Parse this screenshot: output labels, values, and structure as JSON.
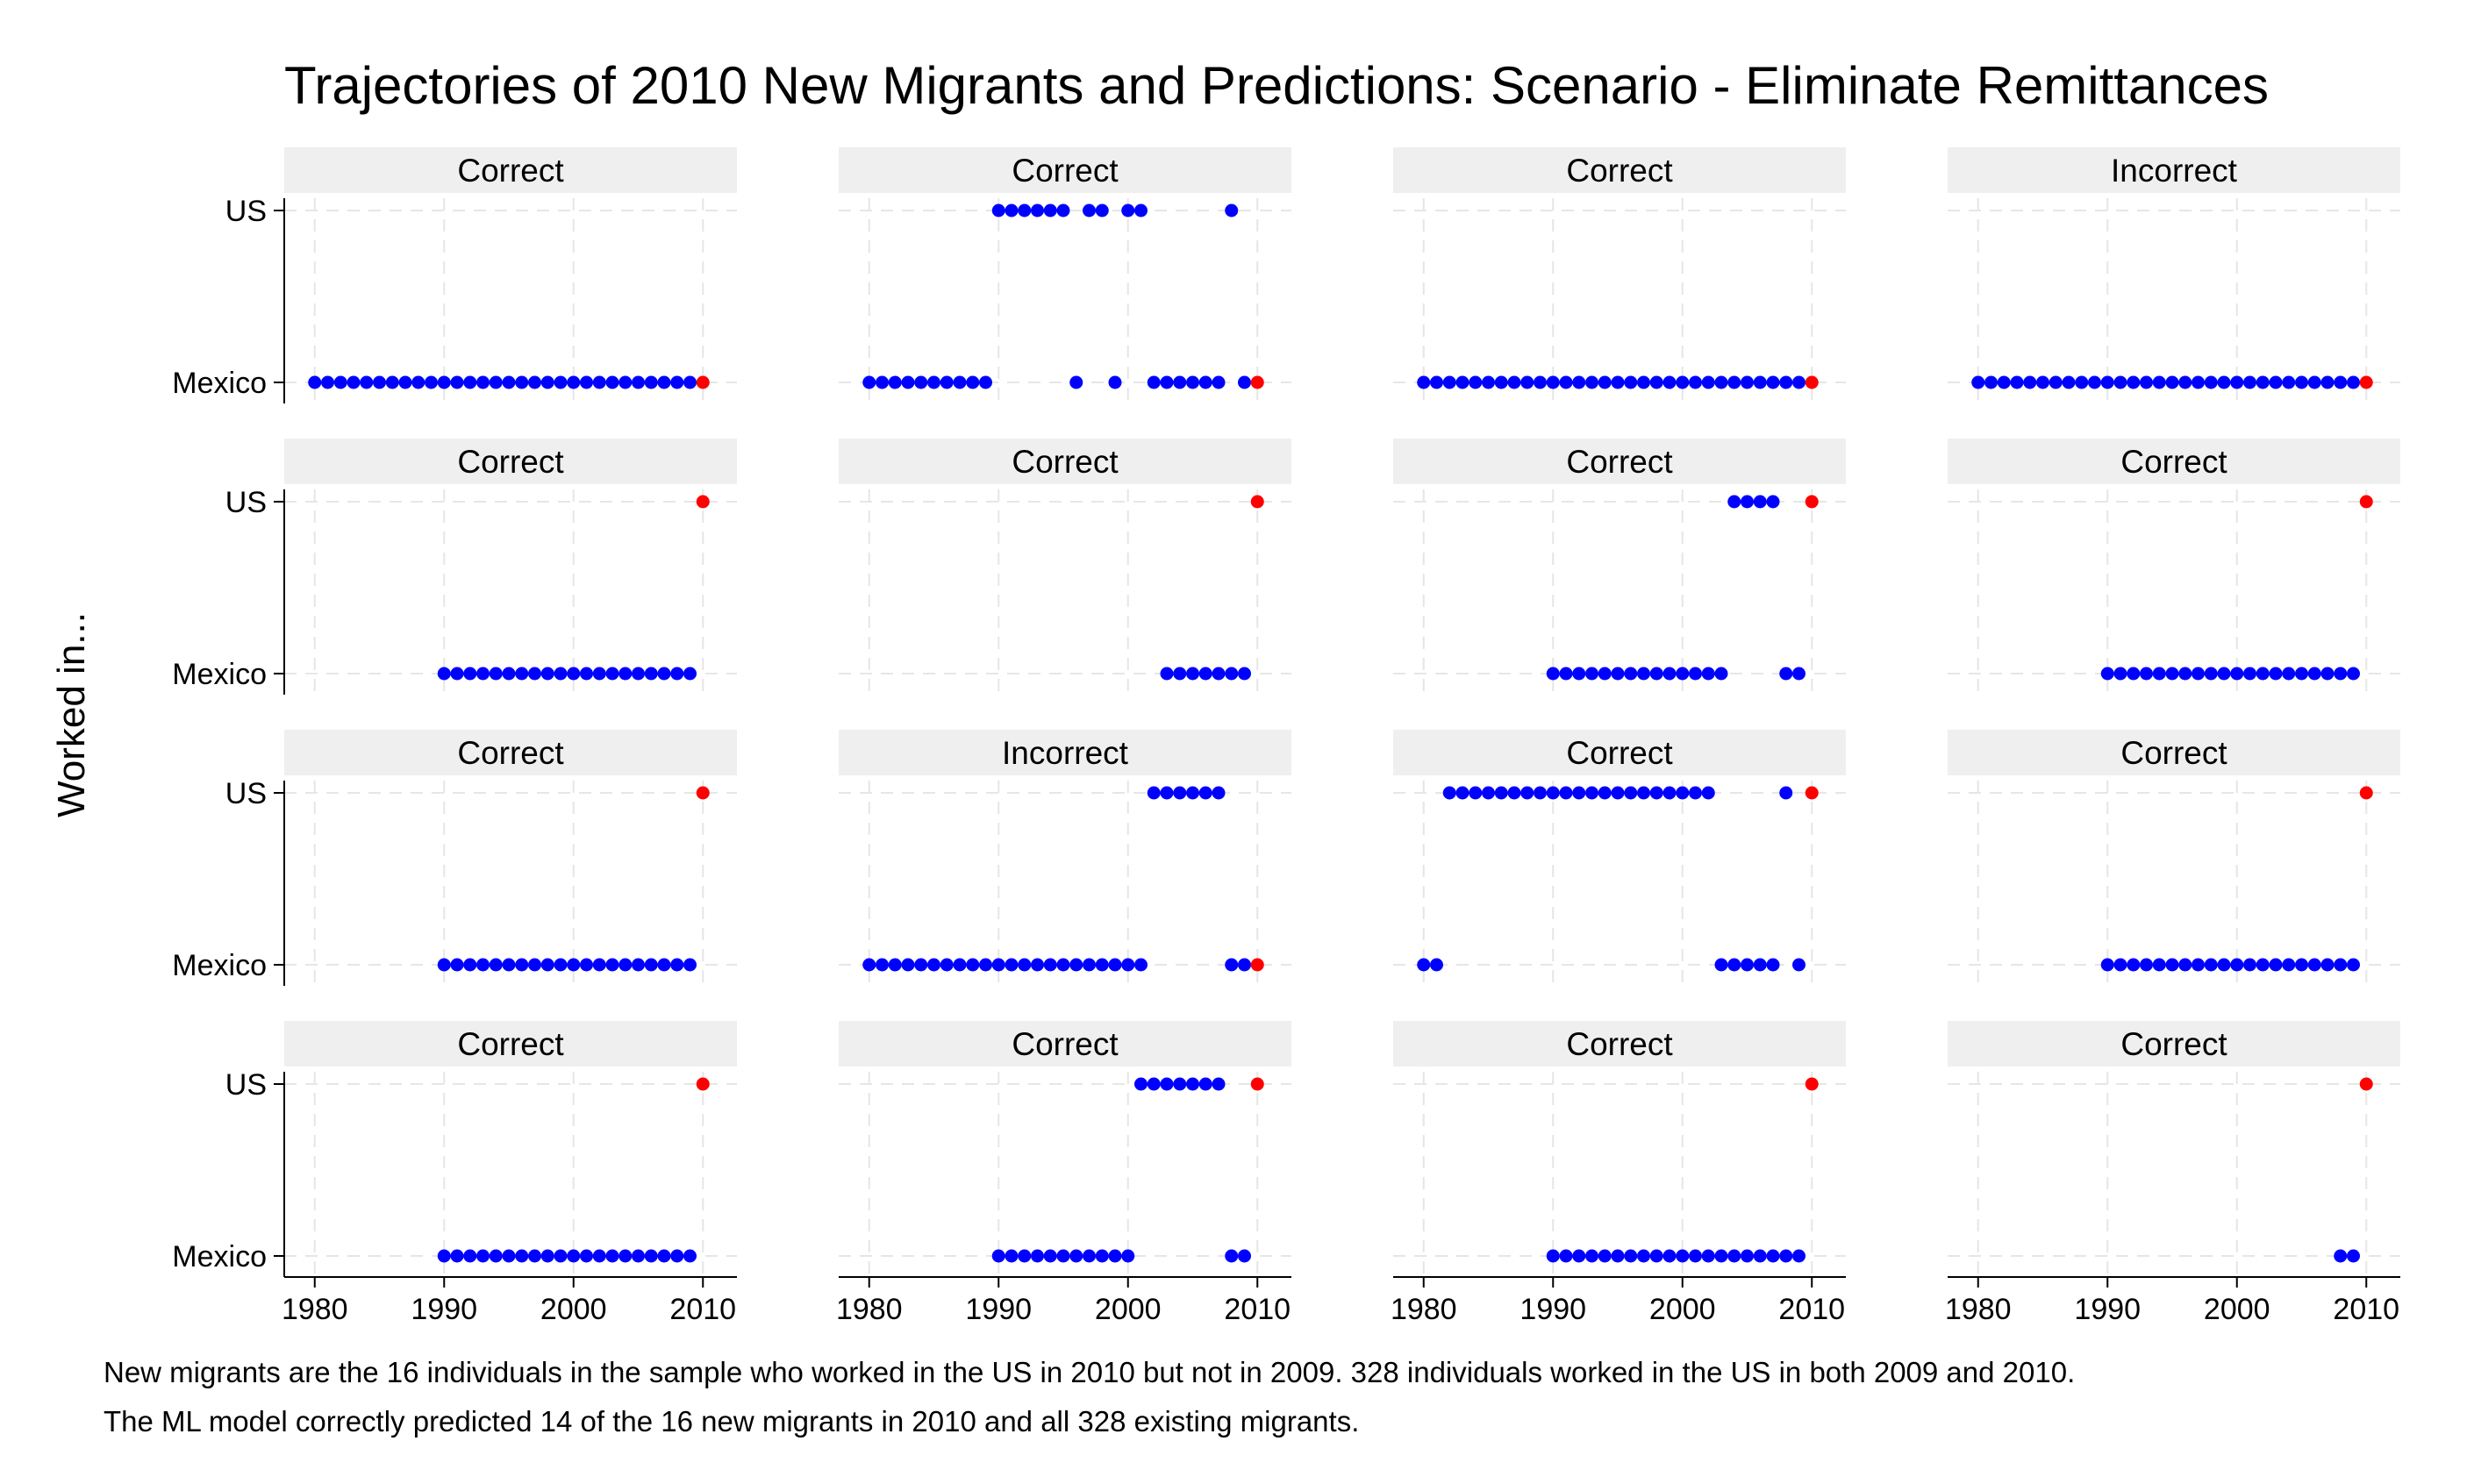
{
  "chart_data": {
    "type": "scatter",
    "title": "Trajectories of 2010 New Migrants and Predictions: Scenario - Eliminate Remittances",
    "ylabel": "Worked in...",
    "y_categories": [
      "Mexico",
      "US"
    ],
    "x_ticks": [
      1980,
      1990,
      2000,
      2010
    ],
    "xlim": [
      1979,
      2011
    ],
    "grid": true,
    "legend": "none",
    "colors": {
      "observed": "#0000ff",
      "prediction_2010": "#ff0000",
      "strip": "#efefef",
      "grid": "#e6e6e6"
    },
    "panels": [
      {
        "label": "Correct",
        "mexico": [
          1980,
          1981,
          1982,
          1983,
          1984,
          1985,
          1986,
          1987,
          1988,
          1989,
          1990,
          1991,
          1992,
          1993,
          1994,
          1995,
          1996,
          1997,
          1998,
          1999,
          2000,
          2001,
          2002,
          2003,
          2004,
          2005,
          2006,
          2007,
          2008,
          2009
        ],
        "us": [],
        "prediction_2010": "Mexico"
      },
      {
        "label": "Correct",
        "mexico": [
          1980,
          1981,
          1982,
          1983,
          1984,
          1985,
          1986,
          1987,
          1988,
          1989,
          1996,
          1999,
          2002,
          2003,
          2004,
          2005,
          2006,
          2007,
          2009
        ],
        "us": [
          1990,
          1991,
          1992,
          1993,
          1994,
          1995,
          1997,
          1998,
          2000,
          2001,
          2008
        ],
        "prediction_2010": "Mexico"
      },
      {
        "label": "Correct",
        "mexico": [
          1980,
          1981,
          1982,
          1983,
          1984,
          1985,
          1986,
          1987,
          1988,
          1989,
          1990,
          1991,
          1992,
          1993,
          1994,
          1995,
          1996,
          1997,
          1998,
          1999,
          2000,
          2001,
          2002,
          2003,
          2004,
          2005,
          2006,
          2007,
          2008,
          2009
        ],
        "us": [],
        "prediction_2010": "Mexico"
      },
      {
        "label": "Incorrect",
        "mexico": [
          1980,
          1981,
          1982,
          1983,
          1984,
          1985,
          1986,
          1987,
          1988,
          1989,
          1990,
          1991,
          1992,
          1993,
          1994,
          1995,
          1996,
          1997,
          1998,
          1999,
          2000,
          2001,
          2002,
          2003,
          2004,
          2005,
          2006,
          2007,
          2008,
          2009
        ],
        "us": [],
        "prediction_2010": "Mexico"
      },
      {
        "label": "Correct",
        "mexico": [
          1990,
          1991,
          1992,
          1993,
          1994,
          1995,
          1996,
          1997,
          1998,
          1999,
          2000,
          2001,
          2002,
          2003,
          2004,
          2005,
          2006,
          2007,
          2008,
          2009
        ],
        "us": [],
        "prediction_2010": "US"
      },
      {
        "label": "Correct",
        "mexico": [
          2003,
          2004,
          2005,
          2006,
          2007,
          2008,
          2009
        ],
        "us": [],
        "prediction_2010": "US"
      },
      {
        "label": "Correct",
        "mexico": [
          1990,
          1991,
          1992,
          1993,
          1994,
          1995,
          1996,
          1997,
          1998,
          1999,
          2000,
          2001,
          2002,
          2003,
          2008,
          2009
        ],
        "us": [
          2004,
          2005,
          2006,
          2007
        ],
        "prediction_2010": "US"
      },
      {
        "label": "Correct",
        "mexico": [
          1990,
          1991,
          1992,
          1993,
          1994,
          1995,
          1996,
          1997,
          1998,
          1999,
          2000,
          2001,
          2002,
          2003,
          2004,
          2005,
          2006,
          2007,
          2008,
          2009
        ],
        "us": [],
        "prediction_2010": "US"
      },
      {
        "label": "Correct",
        "mexico": [
          1990,
          1991,
          1992,
          1993,
          1994,
          1995,
          1996,
          1997,
          1998,
          1999,
          2000,
          2001,
          2002,
          2003,
          2004,
          2005,
          2006,
          2007,
          2008,
          2009
        ],
        "us": [],
        "prediction_2010": "US"
      },
      {
        "label": "Incorrect",
        "mexico": [
          1980,
          1981,
          1982,
          1983,
          1984,
          1985,
          1986,
          1987,
          1988,
          1989,
          1990,
          1991,
          1992,
          1993,
          1994,
          1995,
          1996,
          1997,
          1998,
          1999,
          2000,
          2001,
          2008,
          2009
        ],
        "us": [
          2002,
          2003,
          2004,
          2005,
          2006,
          2007
        ],
        "prediction_2010": "Mexico"
      },
      {
        "label": "Correct",
        "mexico": [
          1980,
          1981,
          2003,
          2004,
          2005,
          2006,
          2007,
          2009
        ],
        "us": [
          1982,
          1983,
          1984,
          1985,
          1986,
          1987,
          1988,
          1989,
          1990,
          1991,
          1992,
          1993,
          1994,
          1995,
          1996,
          1997,
          1998,
          1999,
          2000,
          2001,
          2002,
          2008
        ],
        "prediction_2010": "US"
      },
      {
        "label": "Correct",
        "mexico": [
          1990,
          1991,
          1992,
          1993,
          1994,
          1995,
          1996,
          1997,
          1998,
          1999,
          2000,
          2001,
          2002,
          2003,
          2004,
          2005,
          2006,
          2007,
          2008,
          2009
        ],
        "us": [],
        "prediction_2010": "US"
      },
      {
        "label": "Correct",
        "mexico": [
          1990,
          1991,
          1992,
          1993,
          1994,
          1995,
          1996,
          1997,
          1998,
          1999,
          2000,
          2001,
          2002,
          2003,
          2004,
          2005,
          2006,
          2007,
          2008,
          2009
        ],
        "us": [],
        "prediction_2010": "US"
      },
      {
        "label": "Correct",
        "mexico": [
          1990,
          1991,
          1992,
          1993,
          1994,
          1995,
          1996,
          1997,
          1998,
          1999,
          2000,
          2008,
          2009
        ],
        "us": [
          2001,
          2002,
          2003,
          2004,
          2005,
          2006,
          2007
        ],
        "prediction_2010": "US"
      },
      {
        "label": "Correct",
        "mexico": [
          1990,
          1991,
          1992,
          1993,
          1994,
          1995,
          1996,
          1997,
          1998,
          1999,
          2000,
          2001,
          2002,
          2003,
          2004,
          2005,
          2006,
          2007,
          2008,
          2009
        ],
        "us": [],
        "prediction_2010": "US"
      },
      {
        "label": "Correct",
        "mexico": [
          2008,
          2009
        ],
        "us": [],
        "prediction_2010": "US"
      }
    ]
  },
  "notes": [
    "New migrants are the 16 individuals in the sample who worked in the US in 2010 but not in 2009. 328 individuals worked in the US in both 2009 and 2010.",
    "The ML model correctly predicted 14 of the 16 new migrants in 2010 and all 328 existing migrants."
  ]
}
